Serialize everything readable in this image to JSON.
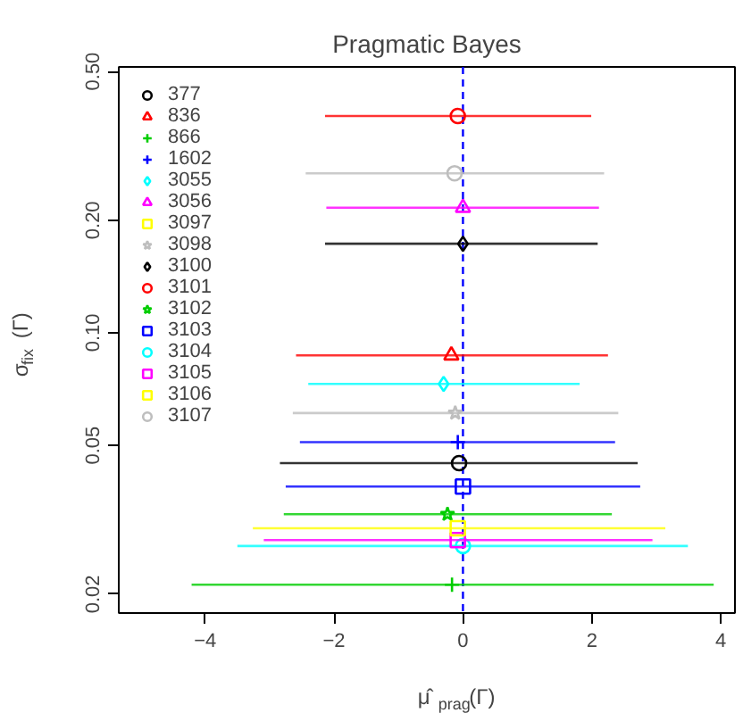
{
  "chart_data": {
    "type": "scatter",
    "title": "Pragmatic Bayes",
    "xlabel": "μ̂$_{prag}$(Γ)",
    "ylabel": "σ$_{fix}$(Γ)",
    "log": "y",
    "grid": false,
    "legend": "top left",
    "xlim": [
      -5.34,
      4.22
    ],
    "ylim": [
      0.0178,
      0.514
    ],
    "xticks": [
      {
        "value": -4,
        "label": "−4"
      },
      {
        "value": -2,
        "label": "−2"
      },
      0,
      2,
      4
    ],
    "yticks": [
      0.02,
      0.05,
      {
        "value": 0.1,
        "label": "0.10"
      },
      {
        "value": 0.2,
        "label": "0.20"
      },
      {
        "value": 0.5,
        "label": "0.50"
      }
    ],
    "ref_lines": [
      {
        "axis": "x",
        "value": 0,
        "label": null,
        "color": "#0000ff",
        "line_style": "dashed"
      }
    ],
    "series": [
      {
        "name": "377",
        "color": "#000000",
        "marker": "circle",
        "x": [
          -0.06
        ],
        "values": [
          0.0448
        ],
        "xerrors": [
          [
            -2.84,
            2.71
          ]
        ]
      },
      {
        "name": "836",
        "color": "#ff0000",
        "marker": "triangle",
        "x": [
          -0.18
        ],
        "values": [
          0.087
        ],
        "xerrors": [
          [
            -2.59,
            2.25
          ]
        ]
      },
      {
        "name": "866",
        "color": "#00cd00",
        "marker": "cross",
        "x": [
          -0.17
        ],
        "values": [
          0.0212
        ],
        "xerrors": [
          [
            -4.21,
            3.89
          ]
        ]
      },
      {
        "name": "1602",
        "color": "#0000ff",
        "marker": "cross",
        "x": [
          -0.08
        ],
        "values": [
          0.051
        ],
        "xerrors": [
          [
            -2.53,
            2.36
          ]
        ]
      },
      {
        "name": "3055",
        "color": "#00ffff",
        "marker": "diamond",
        "x": [
          -0.3
        ],
        "values": [
          0.073
        ],
        "xerrors": [
          [
            -2.4,
            1.81
          ]
        ]
      },
      {
        "name": "3056",
        "color": "#ff00ff",
        "marker": "triangle",
        "x": [
          0.0
        ],
        "values": [
          0.216
        ],
        "xerrors": [
          [
            -2.12,
            2.11
          ]
        ]
      },
      {
        "name": "3097",
        "color": "#ffff00",
        "marker": "square",
        "x": [
          null
        ],
        "values": [
          null
        ],
        "xerrors": [
          null
        ]
      },
      {
        "name": "3098",
        "color": "#bebebe",
        "marker": "star",
        "x": [
          -0.12
        ],
        "values": [
          0.061
        ],
        "xerrors": [
          [
            -2.64,
            2.41
          ]
        ]
      },
      {
        "name": "3100",
        "color": "#000000",
        "marker": "diamond",
        "x": [
          0.0
        ],
        "values": [
          0.173
        ],
        "xerrors": [
          [
            -2.14,
            2.09
          ]
        ]
      },
      {
        "name": "3101",
        "color": "#ff0000",
        "marker": "circle",
        "x": [
          -0.08
        ],
        "values": [
          0.38
        ],
        "xerrors": [
          [
            -2.14,
            1.99
          ]
        ]
      },
      {
        "name": "3102",
        "color": "#00cd00",
        "marker": "star",
        "x": [
          -0.24
        ],
        "values": [
          0.0327
        ],
        "xerrors": [
          [
            -2.78,
            2.31
          ]
        ]
      },
      {
        "name": "3103",
        "color": "#0000ff",
        "marker": "square",
        "x": [
          0.0
        ],
        "values": [
          0.0388
        ],
        "xerrors": [
          [
            -2.75,
            2.75
          ]
        ]
      },
      {
        "name": "3104",
        "color": "#00ffff",
        "marker": "circle",
        "x": [
          0.0
        ],
        "values": [
          0.0269
        ],
        "xerrors": [
          [
            -3.5,
            3.49
          ]
        ]
      },
      {
        "name": "3105",
        "color": "#ff00ff",
        "marker": "square",
        "x": [
          -0.08
        ],
        "values": [
          0.0279
        ],
        "xerrors": [
          [
            -3.09,
            2.94
          ]
        ]
      },
      {
        "name": "3106",
        "color": "#ffff00",
        "marker": "square",
        "x": [
          -0.08
        ],
        "values": [
          0.03
        ],
        "xerrors": [
          [
            -3.26,
            3.14
          ]
        ]
      },
      {
        "name": "3107",
        "color": "#bebebe",
        "marker": "circle",
        "x": [
          -0.13
        ],
        "values": [
          0.267
        ],
        "xerrors": [
          [
            -2.44,
            2.19
          ]
        ]
      }
    ]
  }
}
